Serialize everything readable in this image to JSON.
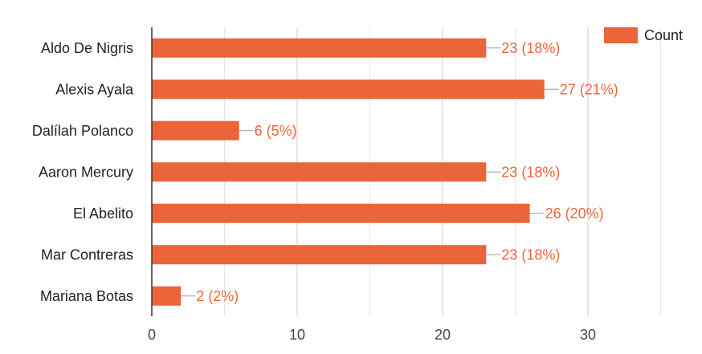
{
  "chart_data": {
    "type": "bar",
    "orientation": "horizontal",
    "categories": [
      "Aldo De Nigris",
      "Alexis Ayala",
      "Dalílah Polanco",
      "Aaron Mercury",
      "El Abelito",
      "Mar Contreras",
      "Mariana Botas"
    ],
    "series": [
      {
        "name": "Count",
        "values": [
          23,
          27,
          6,
          23,
          26,
          23,
          2
        ],
        "labels": [
          "23 (18%)",
          "27 (21%)",
          "6 (5%)",
          "23 (18%)",
          "26 (20%)",
          "23 (18%)",
          "2 (2%)"
        ],
        "color": "#ec6439"
      }
    ],
    "xlim": [
      0,
      37
    ],
    "xticks": [
      0,
      10,
      20,
      30
    ],
    "grid": true,
    "legend": "top-right",
    "title": "",
    "xlabel": "",
    "ylabel": ""
  }
}
